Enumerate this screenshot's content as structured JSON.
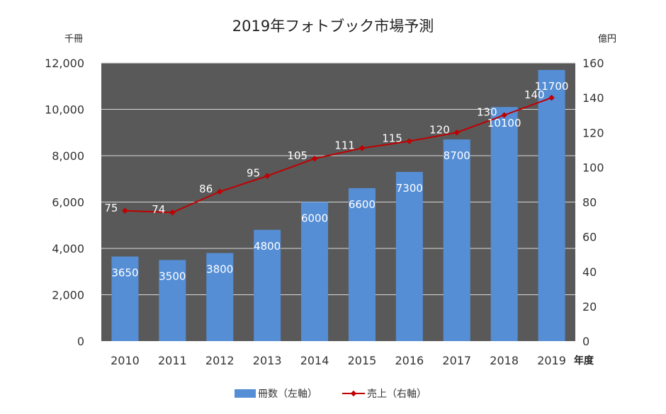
{
  "chart_data": {
    "type": "bar+line",
    "title": "2019年フォトブック市場予測",
    "xlabel": "年度",
    "ylabel_left": "千冊",
    "ylabel_right": "億円",
    "categories": [
      "2010",
      "2011",
      "2012",
      "2013",
      "2014",
      "2015",
      "2016",
      "2017",
      "2018",
      "2019"
    ],
    "left_axis": {
      "min": 0,
      "max": 12000,
      "ticks": [
        "0",
        "2,000",
        "4,000",
        "6,000",
        "8,000",
        "10,000",
        "12,000"
      ],
      "tick_values": [
        0,
        2000,
        4000,
        6000,
        8000,
        10000,
        12000
      ]
    },
    "right_axis": {
      "min": 0,
      "max": 160,
      "ticks": [
        "0",
        "20",
        "40",
        "60",
        "80",
        "100",
        "120",
        "140",
        "160"
      ],
      "tick_values": [
        0,
        20,
        40,
        60,
        80,
        100,
        120,
        140,
        160
      ]
    },
    "series": [
      {
        "name": "冊数（左軸）",
        "type": "bar",
        "axis": "left",
        "color": "#558ed5",
        "values": [
          3650,
          3500,
          3800,
          4800,
          6000,
          6600,
          7300,
          8700,
          10100,
          11700
        ]
      },
      {
        "name": "売上（右軸）",
        "type": "line",
        "axis": "right",
        "color": "#c00000",
        "values": [
          75,
          74,
          86,
          95,
          105,
          111,
          115,
          120,
          130,
          140
        ]
      }
    ],
    "plot_background": "#595959",
    "grid": true,
    "legend_position": "bottom"
  }
}
